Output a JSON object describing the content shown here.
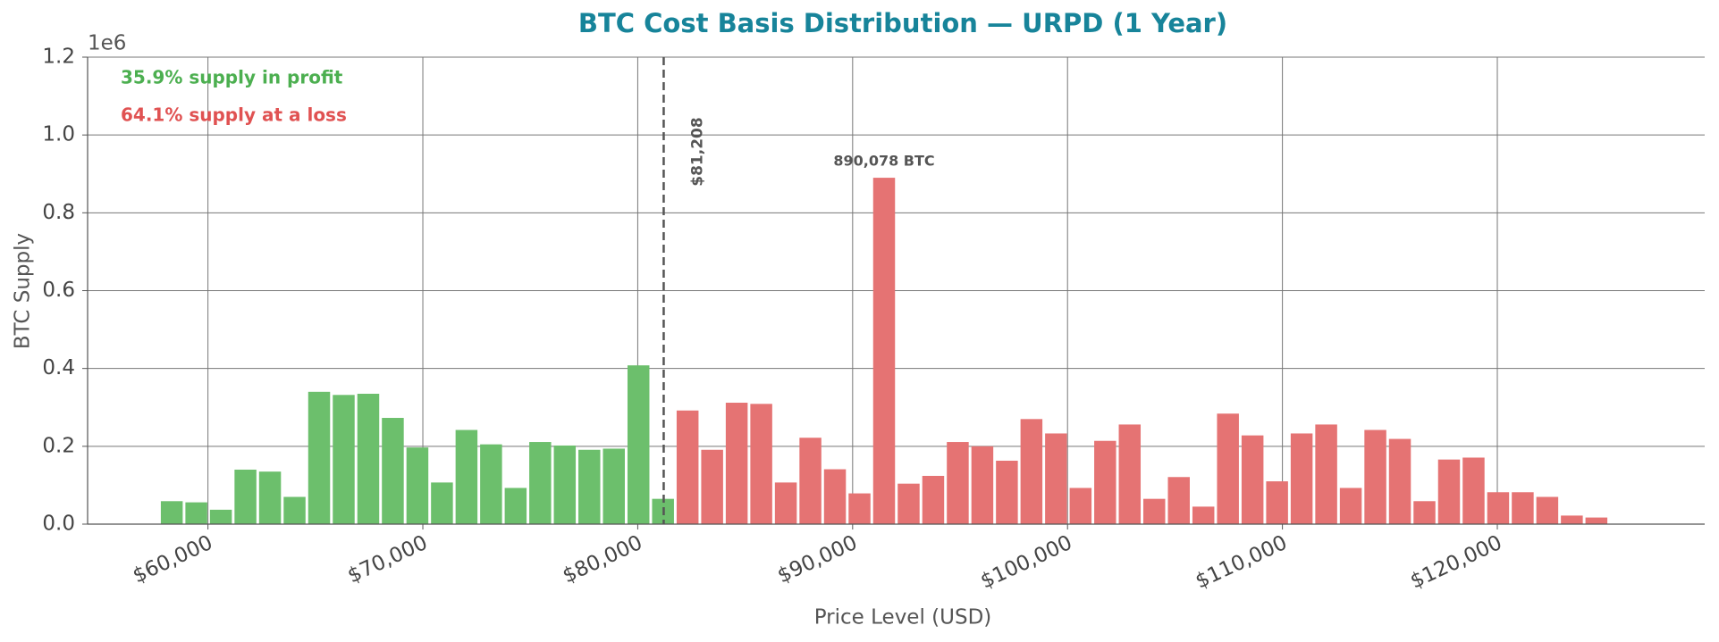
{
  "chart_data": {
    "type": "histogram",
    "title": "BTC Cost Basis Distribution — URPD (1 Year)",
    "xlabel": "Price Level (USD)",
    "ylabel": "BTC Supply",
    "y_offset_label": "1e6",
    "bins": [
      57745,
      58888,
      60031,
      61174,
      62317,
      63460,
      64603,
      65746,
      66889,
      68032,
      69175,
      70318,
      71461,
      72604,
      73747,
      74890,
      76033,
      77176,
      78319,
      79462,
      80605,
      81748,
      82891,
      84034,
      85177,
      86320,
      87463,
      88606,
      89749,
      90892,
      92035,
      93178,
      94321,
      95464,
      96607,
      97750,
      98893,
      100036,
      101179,
      102322,
      103465,
      104608,
      105751,
      106894,
      108037,
      109180,
      110323,
      111466,
      112609,
      113752,
      114895,
      116038,
      117181,
      118324,
      119467,
      120610,
      121753,
      122896,
      124039,
      125182
    ],
    "values": [
      59000,
      56000,
      37000,
      140000,
      135000,
      70000,
      340000,
      332000,
      335000,
      273000,
      197000,
      107000,
      242000,
      205000,
      93000,
      211000,
      202000,
      191000,
      194000,
      408000,
      65000,
      292000,
      191000,
      312000,
      309000,
      107000,
      222000,
      141000,
      79000,
      890078,
      104000,
      124000,
      211000,
      200000,
      163000,
      270000,
      233000,
      93000,
      214000,
      256000,
      65000,
      121000,
      45000,
      284000,
      228000,
      110000,
      233000,
      256000,
      93000,
      242000,
      219000,
      59000,
      166000,
      171000,
      82000,
      82000,
      70000,
      22000,
      17000
    ],
    "value_labels": [
      null,
      null,
      null,
      null,
      null,
      null,
      null,
      null,
      null,
      null,
      null,
      null,
      null,
      null,
      null,
      null,
      null,
      null,
      null,
      null,
      null,
      null,
      null,
      null,
      null,
      null,
      null,
      null,
      null,
      "890,078 BTC",
      null,
      null,
      null,
      null,
      null,
      null,
      null,
      null,
      null,
      null,
      null,
      null,
      null,
      null,
      null,
      null,
      null,
      null,
      null,
      null,
      null,
      null,
      null,
      null,
      null,
      null,
      null,
      null,
      null
    ],
    "profit_color": "#6cbf6c",
    "loss_color": "#e57373",
    "price_line": {
      "value": 81208,
      "label": "$81,208"
    },
    "annotations": [
      {
        "text": "35.9% supply in profit",
        "color": "#4caf50"
      },
      {
        "text": "64.1% supply at a loss",
        "color": "#e05252"
      }
    ],
    "xlim": [
      54400,
      129650
    ],
    "ylim": [
      0,
      1200000
    ],
    "xticks": [
      {
        "value": 60000,
        "label": "$60,000"
      },
      {
        "value": 70000,
        "label": "$70,000"
      },
      {
        "value": 80000,
        "label": "$80,000"
      },
      {
        "value": 90000,
        "label": "$90,000"
      },
      {
        "value": 100000,
        "label": "$100,000"
      },
      {
        "value": 110000,
        "label": "$110,000"
      },
      {
        "value": 120000,
        "label": "$120,000"
      }
    ],
    "yticks": [
      {
        "value": 0,
        "label": "0.0"
      },
      {
        "value": 200000,
        "label": "0.2"
      },
      {
        "value": 400000,
        "label": "0.4"
      },
      {
        "value": 600000,
        "label": "0.6"
      },
      {
        "value": 800000,
        "label": "0.8"
      },
      {
        "value": 1000000,
        "label": "1.0"
      },
      {
        "value": 1200000,
        "label": "1.2"
      }
    ],
    "grid": true
  }
}
